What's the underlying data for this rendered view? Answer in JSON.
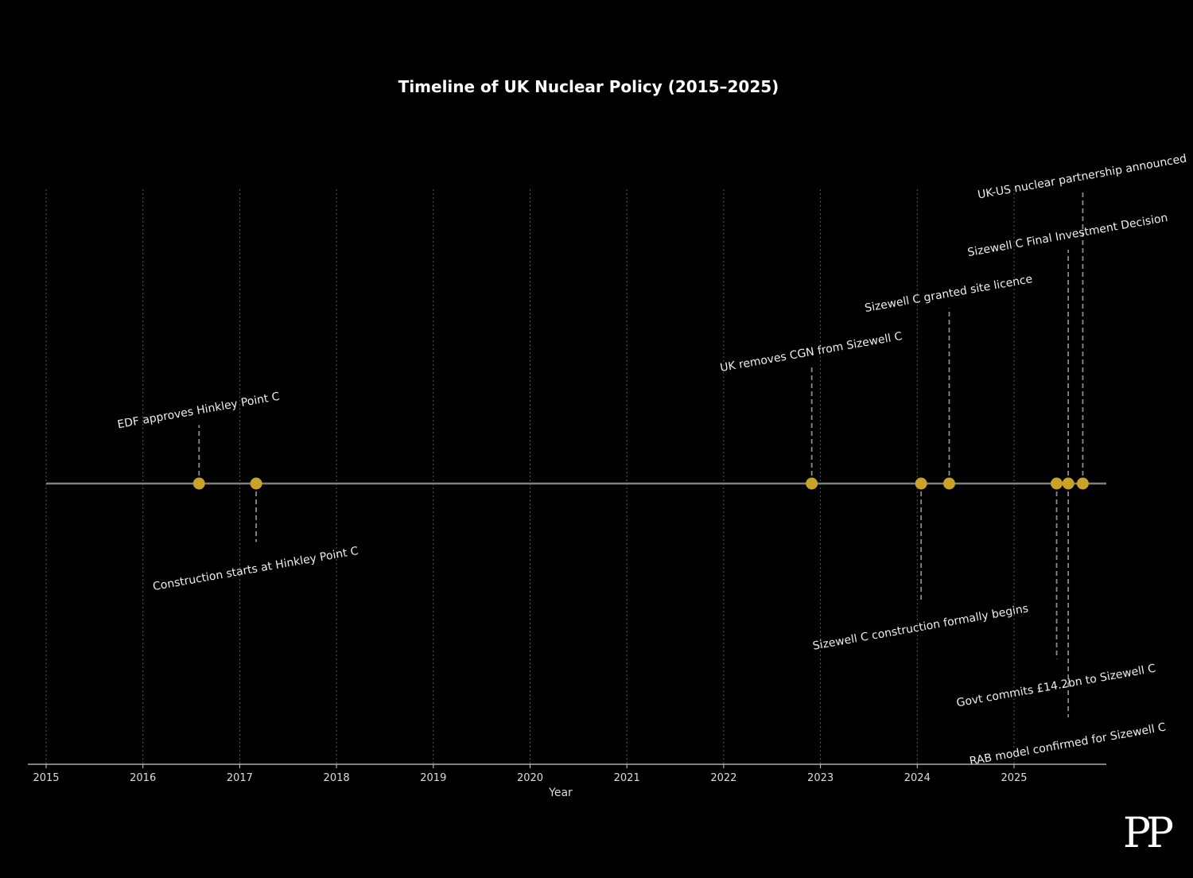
{
  "chart_data": {
    "type": "timeline",
    "title": "Timeline of UK Nuclear Policy (2015–2025)",
    "xlabel": "Year",
    "x_ticks": [
      "2015",
      "2016",
      "2017",
      "2018",
      "2019",
      "2020",
      "2021",
      "2022",
      "2023",
      "2024",
      "2025"
    ],
    "xlim": [
      2015.0,
      2025.83
    ],
    "grid": "vertical dotted",
    "events": [
      {
        "x": 2016.58,
        "label": "EDF approves Hinkley Point C",
        "side": "above",
        "stem": 1.0
      },
      {
        "x": 2017.17,
        "label": "Construction starts at Hinkley Point C",
        "side": "below",
        "stem": 1.0
      },
      {
        "x": 2022.91,
        "label": "UK removes CGN from Sizewell C",
        "side": "above",
        "stem": 2.0
      },
      {
        "x": 2024.04,
        "label": "Sizewell C construction formally begins",
        "side": "below",
        "stem": 2.0
      },
      {
        "x": 2024.33,
        "label": "Sizewell C granted site licence",
        "side": "above",
        "stem": 3.0
      },
      {
        "x": 2025.44,
        "label": "Govt commits £14.2bn to Sizewell C",
        "side": "below",
        "stem": 3.0
      },
      {
        "x": 2025.56,
        "label": "RAB model confirmed for Sizewell C",
        "side": "below",
        "stem": 4.0
      },
      {
        "x": 2025.56,
        "label": "Sizewell C Final Investment Decision",
        "side": "above",
        "stem": 4.0
      },
      {
        "x": 2025.71,
        "label": "UK-US nuclear partnership announced",
        "side": "above",
        "stem": 5.0
      }
    ],
    "colors": {
      "background": "#000000",
      "marker": "#c9a227",
      "baseline": "#808080",
      "stem": "#8a8a8a",
      "grid": "#5a5a5a",
      "text": "#ffffff",
      "axis": "#cccccc"
    }
  },
  "logo": {
    "text": "PP"
  }
}
